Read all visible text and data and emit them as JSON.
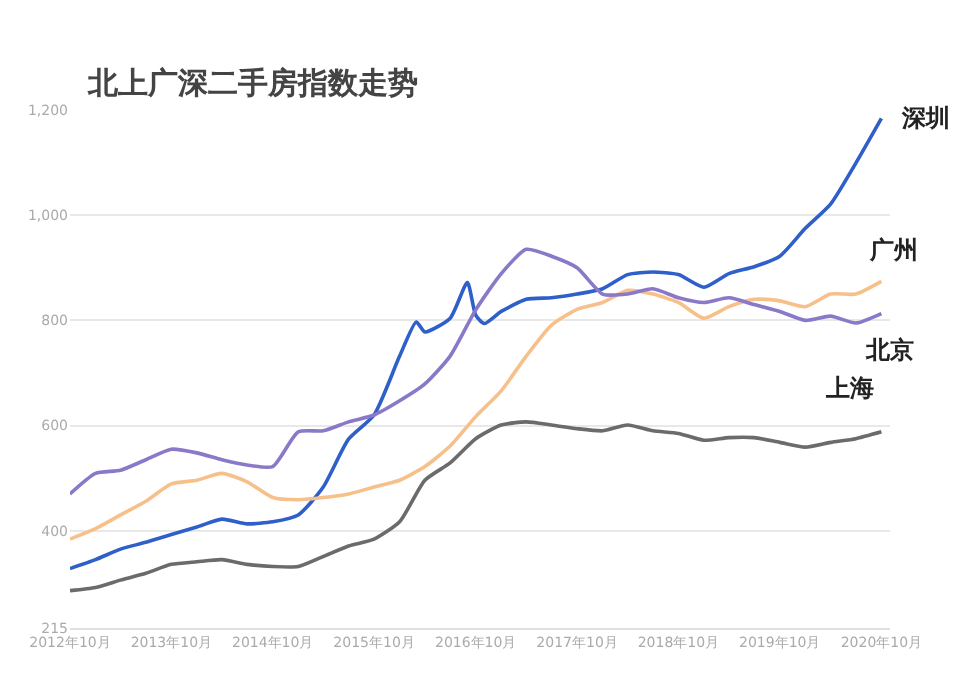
{
  "chart_data": {
    "type": "line",
    "title": "北上广深二手房指数走势",
    "xlim": [
      "2012-10",
      "2020-11"
    ],
    "ylim": [
      215,
      1200
    ],
    "yticks": [
      215,
      400,
      600,
      800,
      {
        "value": 1000,
        "label": "1,000"
      },
      {
        "value": 1200,
        "label": "1,200"
      }
    ],
    "xticks": [
      {
        "value": "2012-10",
        "label": "2012年10月"
      },
      {
        "value": "2013-10",
        "label": "2013年10月"
      },
      {
        "value": "2014-10",
        "label": "2014年10月"
      },
      {
        "value": "2015-10",
        "label": "2015年10月"
      },
      {
        "value": "2016-10",
        "label": "2016年10月"
      },
      {
        "value": "2017-10",
        "label": "2017年10月"
      },
      {
        "value": "2018-10",
        "label": "2018年10月"
      },
      {
        "value": "2019-10",
        "label": "2019年10月"
      },
      {
        "value": "2020-10",
        "label": "2020年10月"
      }
    ],
    "grid": "y",
    "legend": false,
    "marker": "none",
    "line_style": "solid",
    "series": [
      {
        "name": "深圳",
        "color": "#2f5fc8",
        "x": [
          "2012-10",
          "2013-01",
          "2013-04",
          "2013-07",
          "2013-10",
          "2014-01",
          "2014-04",
          "2014-07",
          "2014-10",
          "2015-01",
          "2015-04",
          "2015-07",
          "2015-10",
          "2016-01",
          "2016-03",
          "2016-04",
          "2016-07",
          "2016-09",
          "2016-10",
          "2016-11",
          "2017-01",
          "2017-04",
          "2017-07",
          "2017-10",
          "2018-01",
          "2018-04",
          "2018-07",
          "2018-10",
          "2019-01",
          "2019-04",
          "2019-07",
          "2019-10",
          "2020-01",
          "2020-04",
          "2020-07",
          "2020-10"
        ],
        "values": [
          328,
          345,
          365,
          378,
          393,
          407,
          422,
          413,
          417,
          430,
          483,
          574,
          620,
          732,
          797,
          778,
          804,
          872,
          810,
          794,
          817,
          840,
          843,
          850,
          860,
          887,
          892,
          887,
          863,
          889,
          902,
          922,
          975,
          1021,
          1099,
          1184
        ]
      },
      {
        "name": "广州",
        "color": "#f7c08a",
        "x": [
          "2012-10",
          "2013-01",
          "2013-04",
          "2013-07",
          "2013-10",
          "2014-01",
          "2014-04",
          "2014-07",
          "2014-10",
          "2015-01",
          "2015-04",
          "2015-07",
          "2015-10",
          "2016-01",
          "2016-04",
          "2016-07",
          "2016-10",
          "2017-01",
          "2017-04",
          "2017-07",
          "2017-10",
          "2018-01",
          "2018-04",
          "2018-07",
          "2018-10",
          "2019-01",
          "2019-04",
          "2019-07",
          "2019-10",
          "2020-01",
          "2020-04",
          "2020-07",
          "2020-10"
        ],
        "values": [
          384,
          404,
          430,
          456,
          489,
          496,
          509,
          493,
          463,
          459,
          463,
          470,
          483,
          496,
          522,
          561,
          617,
          666,
          732,
          791,
          821,
          834,
          857,
          850,
          834,
          804,
          826,
          840,
          837,
          826,
          850,
          850,
          874
        ]
      },
      {
        "name": "北京",
        "color": "#8a78c8",
        "x": [
          "2012-10",
          "2013-01",
          "2013-04",
          "2013-07",
          "2013-10",
          "2014-01",
          "2014-04",
          "2014-07",
          "2014-10",
          "2015-01",
          "2015-04",
          "2015-07",
          "2015-10",
          "2016-01",
          "2016-04",
          "2016-07",
          "2016-10",
          "2017-01",
          "2017-04",
          "2017-07",
          "2017-10",
          "2018-01",
          "2018-04",
          "2018-07",
          "2018-10",
          "2019-01",
          "2019-04",
          "2019-07",
          "2019-10",
          "2020-01",
          "2020-04",
          "2020-07",
          "2020-10"
        ],
        "values": [
          470,
          509,
          515,
          535,
          555,
          548,
          535,
          525,
          522,
          588,
          590,
          607,
          620,
          647,
          679,
          732,
          820,
          889,
          935,
          922,
          900,
          850,
          850,
          860,
          843,
          834,
          843,
          830,
          817,
          800,
          808,
          795,
          813
        ]
      },
      {
        "name": "上海",
        "color": "#6b6b6b",
        "x": [
          "2012-10",
          "2013-01",
          "2013-04",
          "2013-07",
          "2013-10",
          "2014-01",
          "2014-04",
          "2014-07",
          "2014-10",
          "2015-01",
          "2015-04",
          "2015-07",
          "2015-10",
          "2016-01",
          "2016-04",
          "2016-07",
          "2016-10",
          "2017-01",
          "2017-04",
          "2017-07",
          "2017-10",
          "2018-01",
          "2018-04",
          "2018-07",
          "2018-10",
          "2019-01",
          "2019-04",
          "2019-07",
          "2019-10",
          "2020-01",
          "2020-04",
          "2020-07",
          "2020-10"
        ],
        "values": [
          286,
          292,
          306,
          319,
          336,
          341,
          345,
          336,
          332,
          332,
          351,
          371,
          384,
          417,
          496,
          529,
          575,
          601,
          607,
          601,
          594,
          590,
          601,
          590,
          585,
          572,
          577,
          577,
          568,
          559,
          568,
          575,
          588
        ]
      }
    ]
  }
}
